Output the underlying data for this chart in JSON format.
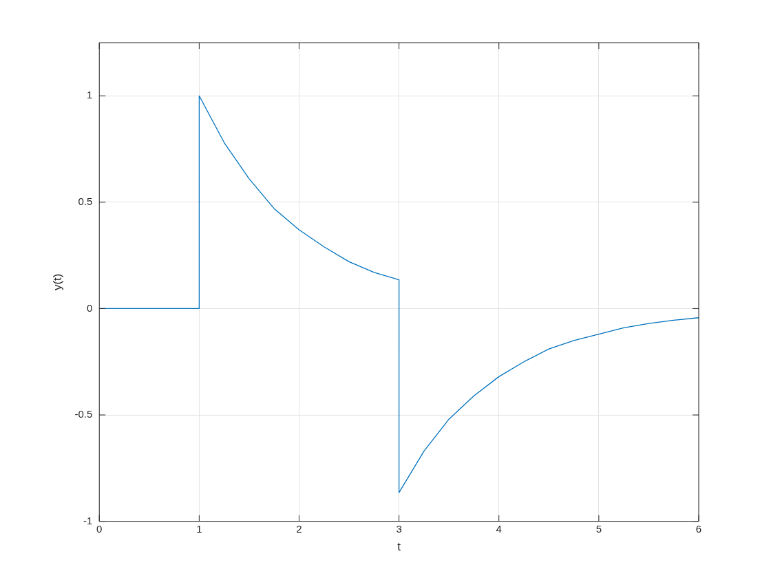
{
  "chart_data": {
    "type": "line",
    "xlabel": "t",
    "ylabel": "y(t)",
    "xlim": [
      0,
      6
    ],
    "xticks": [
      0,
      1,
      2,
      3,
      4,
      5,
      6
    ],
    "ylim": [
      -1,
      1.25
    ],
    "yticks": [
      -1,
      -0.5,
      0,
      0.5,
      1
    ],
    "grid": true,
    "legend": false,
    "marker": "none",
    "line_style": "solid",
    "series": [
      {
        "color": "#0072bd",
        "x": [
          0,
          1,
          1,
          1.25,
          1.5,
          1.75,
          2,
          2.25,
          2.5,
          2.75,
          3,
          3,
          3.25,
          3.5,
          3.75,
          4,
          4.25,
          4.5,
          4.75,
          5,
          5.25,
          5.5,
          5.75,
          6
        ],
        "values": [
          0,
          0,
          1,
          0.78,
          0.61,
          0.47,
          0.37,
          0.29,
          0.22,
          0.17,
          0.135,
          -0.865,
          -0.67,
          -0.52,
          -0.41,
          -0.32,
          -0.25,
          -0.19,
          -0.15,
          -0.12,
          -0.09,
          -0.07,
          -0.055,
          -0.043
        ]
      }
    ]
  }
}
